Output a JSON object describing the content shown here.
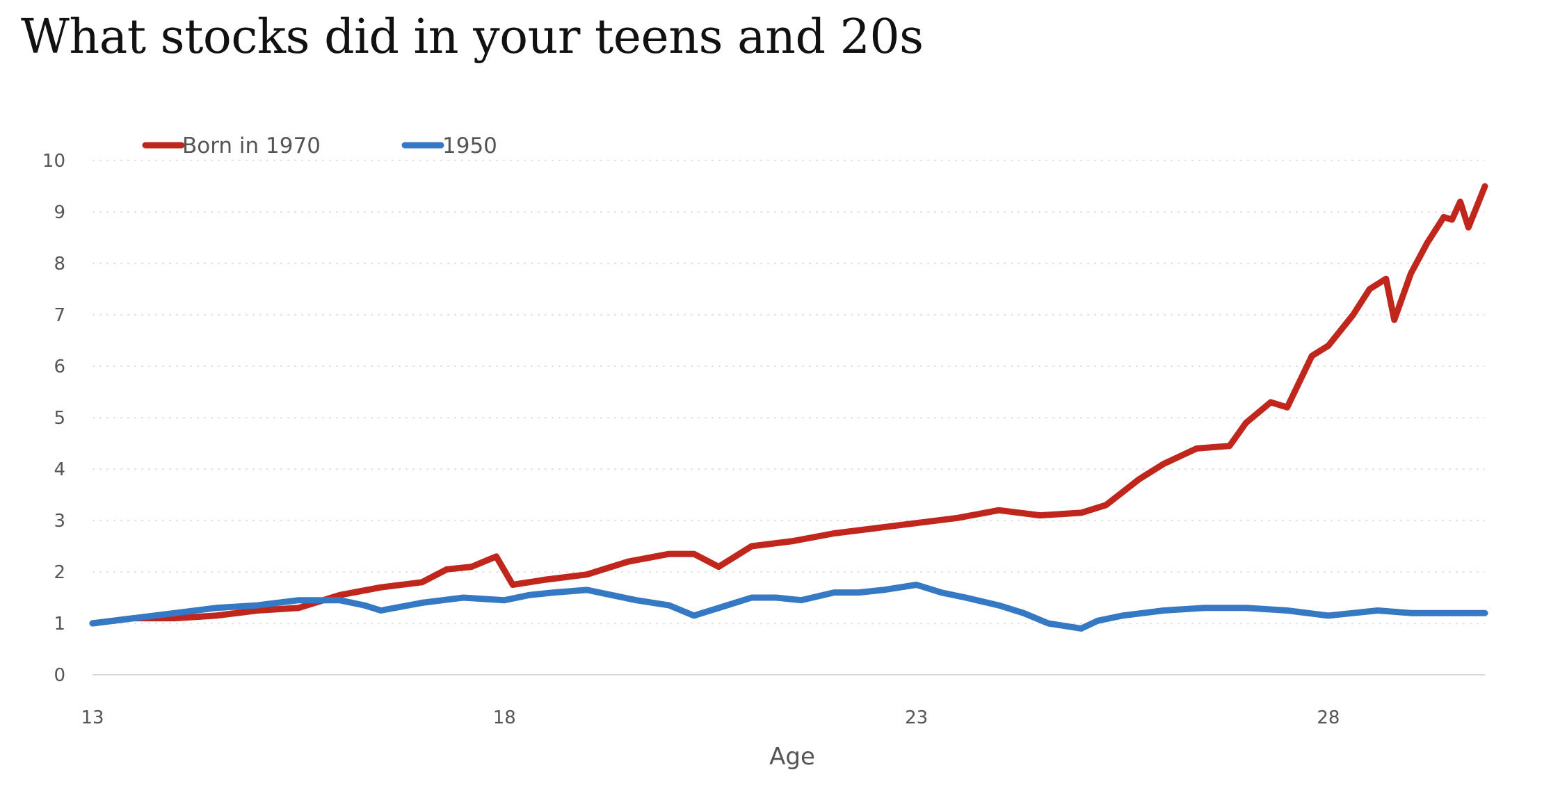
{
  "title": "What stocks did in your teens and 20s",
  "chart_data": {
    "type": "line",
    "title": "What stocks did in your teens and 20s",
    "xlabel": "Age",
    "ylabel": "",
    "xlim": [
      13,
      29.9
    ],
    "ylim": [
      0,
      10
    ],
    "x_ticks": [
      "13",
      "18",
      "23",
      "28"
    ],
    "y_ticks": [
      "0",
      "1",
      "2",
      "3",
      "4",
      "5",
      "6",
      "7",
      "8",
      "9",
      "10"
    ],
    "grid": "horizontal dotted",
    "legend_position": "top-left",
    "series": [
      {
        "name": "Born in 1970",
        "color": "#c0261c",
        "x": [
          13,
          13.5,
          14,
          14.5,
          15,
          15.5,
          16,
          16.5,
          17,
          17.3,
          17.6,
          17.9,
          18.1,
          18.5,
          19,
          19.5,
          20,
          20.3,
          20.6,
          21,
          21.5,
          22,
          22.5,
          23,
          23.5,
          24,
          24.5,
          25,
          25.3,
          25.7,
          26,
          26.4,
          26.8,
          27,
          27.3,
          27.5,
          27.8,
          28,
          28.3,
          28.5,
          28.7,
          28.8,
          29,
          29.2,
          29.4,
          29.5,
          29.6,
          29.7,
          29.9
        ],
        "values": [
          1.0,
          1.1,
          1.1,
          1.15,
          1.25,
          1.3,
          1.55,
          1.7,
          1.8,
          2.05,
          2.1,
          2.3,
          1.75,
          1.85,
          1.95,
          2.2,
          2.35,
          2.35,
          2.1,
          2.5,
          2.6,
          2.75,
          2.85,
          2.95,
          3.05,
          3.2,
          3.1,
          3.15,
          3.3,
          3.8,
          4.1,
          4.4,
          4.45,
          4.9,
          5.3,
          5.2,
          6.2,
          6.4,
          7.0,
          7.5,
          7.7,
          6.9,
          7.8,
          8.4,
          8.9,
          8.85,
          9.2,
          8.7,
          9.5
        ]
      },
      {
        "name": "1950",
        "color": "#3579c4",
        "x": [
          13,
          13.5,
          14,
          14.5,
          15,
          15.5,
          16,
          16.3,
          16.5,
          17,
          17.5,
          18,
          18.3,
          18.6,
          19,
          19.3,
          19.6,
          20,
          20.3,
          20.6,
          21,
          21.3,
          21.6,
          22,
          22.3,
          22.6,
          23,
          23.3,
          23.6,
          24,
          24.3,
          24.6,
          25,
          25.2,
          25.5,
          26,
          26.5,
          27,
          27.5,
          28,
          28.3,
          28.6,
          29,
          29.5,
          29.9
        ],
        "values": [
          1.0,
          1.1,
          1.2,
          1.3,
          1.35,
          1.45,
          1.45,
          1.35,
          1.25,
          1.4,
          1.5,
          1.45,
          1.55,
          1.6,
          1.65,
          1.55,
          1.45,
          1.35,
          1.15,
          1.3,
          1.5,
          1.5,
          1.45,
          1.6,
          1.6,
          1.65,
          1.75,
          1.6,
          1.5,
          1.35,
          1.2,
          1.0,
          0.9,
          1.05,
          1.15,
          1.25,
          1.3,
          1.3,
          1.25,
          1.15,
          1.2,
          1.25,
          1.2,
          1.2,
          1.2
        ]
      }
    ]
  }
}
